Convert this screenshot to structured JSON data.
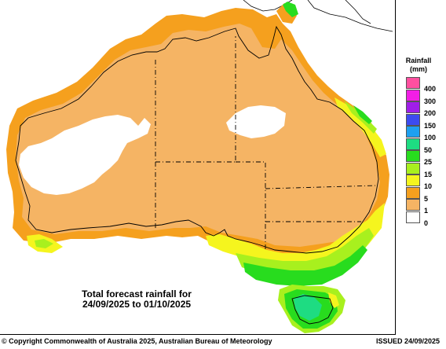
{
  "caption": {
    "line1": "Total forecast rainfall for",
    "line2": "24/09/2025 to 01/10/2025"
  },
  "legend": {
    "title_line1": "Rainfall",
    "title_line2": "(mm)",
    "classes": [
      {
        "label": "400",
        "color": "#ff4fa0"
      },
      {
        "label": "300",
        "color": "#f21ee6"
      },
      {
        "label": "200",
        "color": "#a01ee8"
      },
      {
        "label": "150",
        "color": "#3c4bf0"
      },
      {
        "label": "100",
        "color": "#1ea0f0"
      },
      {
        "label": "50",
        "color": "#1edc82"
      },
      {
        "label": "25",
        "color": "#28dc1e"
      },
      {
        "label": "15",
        "color": "#a8f01e"
      },
      {
        "label": "10",
        "color": "#f5f51e"
      },
      {
        "label": "5",
        "color": "#f5a01e"
      },
      {
        "label": "1",
        "color": "#f5b464"
      },
      {
        "label": "0",
        "color": "#ffffff"
      }
    ]
  },
  "footer": {
    "copyright": "© Copyright Commonwealth of Australia 2025, Australian Bureau of Meteorology",
    "issued": "ISSUED 24/09/2025"
  }
}
